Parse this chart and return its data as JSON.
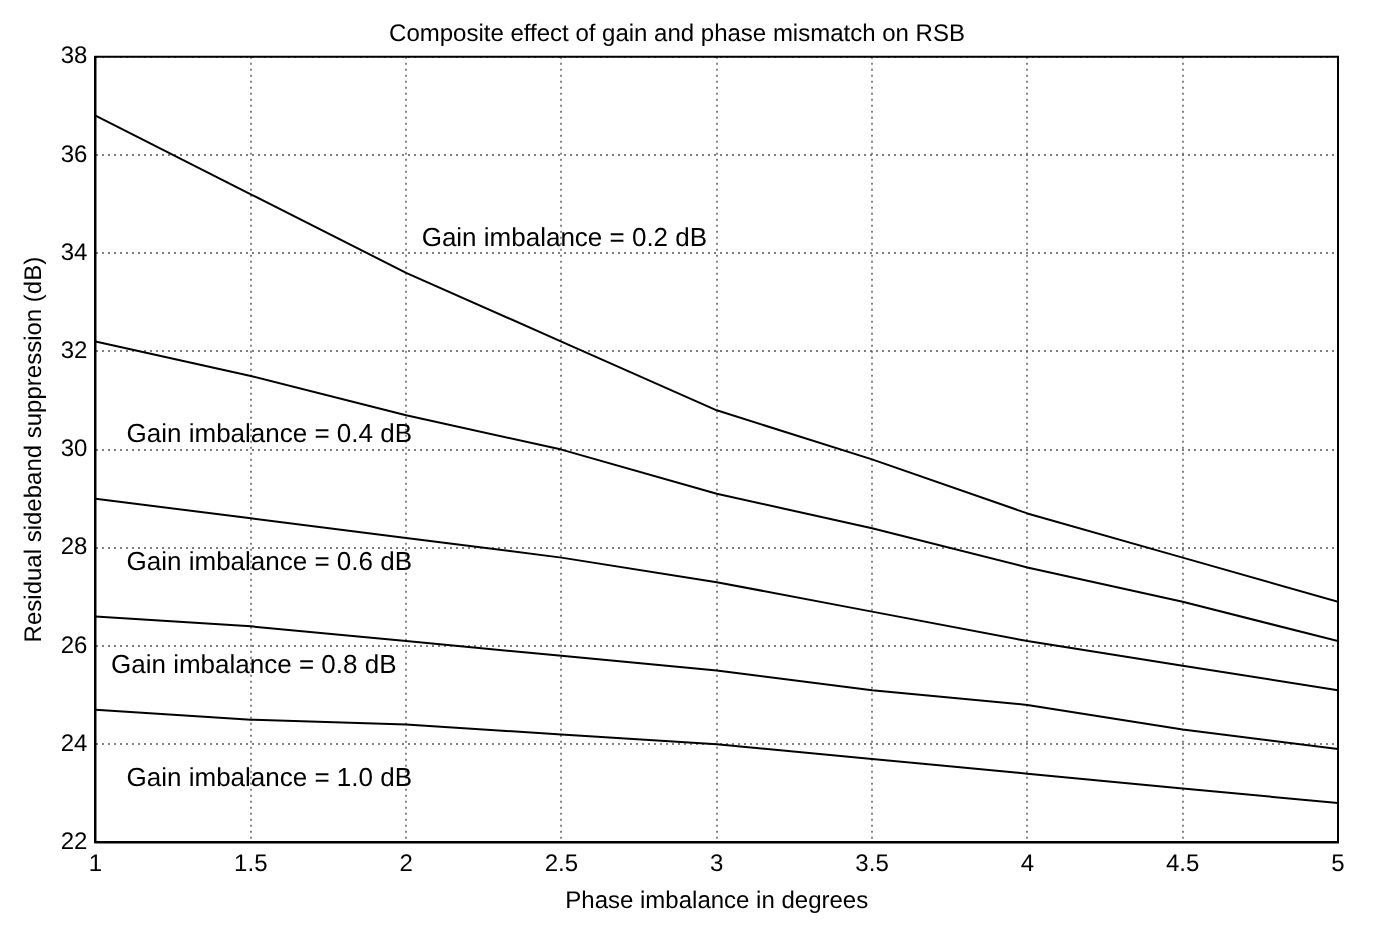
{
  "chart_data": {
    "type": "line",
    "title": "Composite effect of gain and phase mismatch on RSB",
    "xlabel": "Phase imbalance in degrees",
    "ylabel": "Residual sideband suppression (dB)",
    "x": [
      1,
      1.5,
      2,
      2.5,
      3,
      3.5,
      4,
      4.5,
      5
    ],
    "series": [
      {
        "name": "Gain imbalance = 0.2 dB",
        "color": "#000000",
        "values": [
          36.8,
          35.2,
          33.6,
          32.2,
          30.8,
          29.8,
          28.7,
          27.8,
          26.9
        ]
      },
      {
        "name": "Gain imbalance = 0.4 dB",
        "color": "#000000",
        "values": [
          32.2,
          31.5,
          30.7,
          30.0,
          29.1,
          28.4,
          27.6,
          26.9,
          26.1
        ]
      },
      {
        "name": "Gain imbalance = 0.6 dB",
        "color": "#000000",
        "values": [
          29.0,
          28.6,
          28.2,
          27.8,
          27.3,
          26.7,
          26.1,
          25.6,
          25.1
        ]
      },
      {
        "name": "Gain imbalance = 0.8 dB",
        "color": "#000000",
        "values": [
          26.6,
          26.4,
          26.1,
          25.8,
          25.5,
          25.1,
          24.8,
          24.3,
          23.9
        ]
      },
      {
        "name": "Gain imbalance = 1.0 dB",
        "color": "#000000",
        "values": [
          24.7,
          24.5,
          24.4,
          24.2,
          24.0,
          23.7,
          23.4,
          23.1,
          22.8
        ]
      }
    ],
    "xlim": [
      1,
      5
    ],
    "xticks": [
      1,
      1.5,
      2,
      2.5,
      3,
      3.5,
      4,
      4.5,
      5
    ],
    "ylim": [
      22,
      38
    ],
    "yticks": [
      22,
      24,
      26,
      28,
      30,
      32,
      34,
      36,
      38
    ],
    "grid": true,
    "legend": false,
    "marker": "none",
    "line_style": "solid"
  }
}
